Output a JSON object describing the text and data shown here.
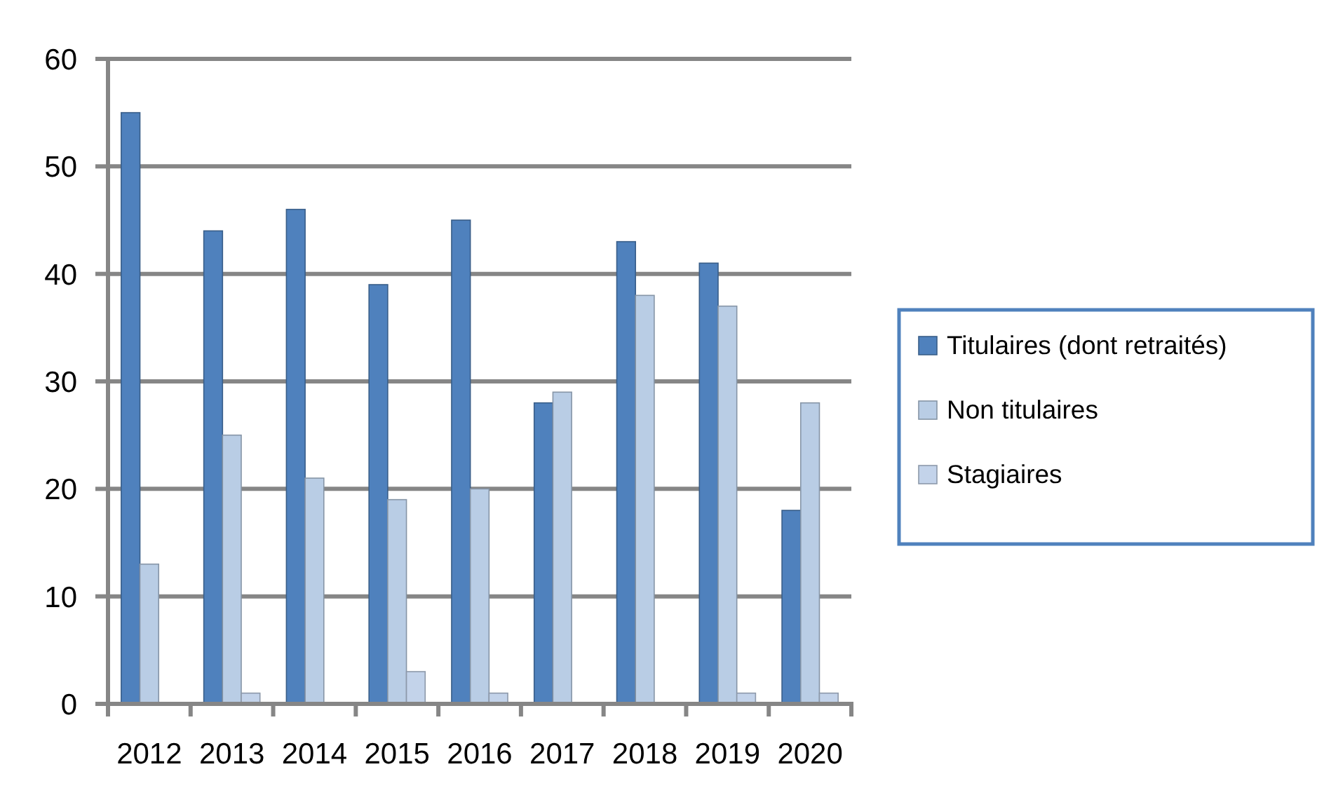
{
  "chart_data": {
    "type": "bar",
    "categories": [
      "2012",
      "2013",
      "2014",
      "2015",
      "2016",
      "2017",
      "2018",
      "2019",
      "2020"
    ],
    "series": [
      {
        "name": "Titulaires (dont retraités)",
        "color": "#4f81bd",
        "values": [
          55,
          44,
          46,
          39,
          45,
          28,
          43,
          41,
          18
        ]
      },
      {
        "name": "Non titulaires",
        "color": "#b9cde5",
        "values": [
          13,
          25,
          21,
          19,
          20,
          29,
          38,
          37,
          28
        ]
      },
      {
        "name": "Stagiaires",
        "color": "#c3d3ea",
        "values": [
          0,
          1,
          0,
          3,
          1,
          0,
          0,
          1,
          1
        ]
      }
    ],
    "ylim": [
      0,
      60
    ],
    "yticks": [
      0,
      10,
      20,
      30,
      40,
      50,
      60
    ],
    "grid": "y",
    "legend": "right"
  }
}
